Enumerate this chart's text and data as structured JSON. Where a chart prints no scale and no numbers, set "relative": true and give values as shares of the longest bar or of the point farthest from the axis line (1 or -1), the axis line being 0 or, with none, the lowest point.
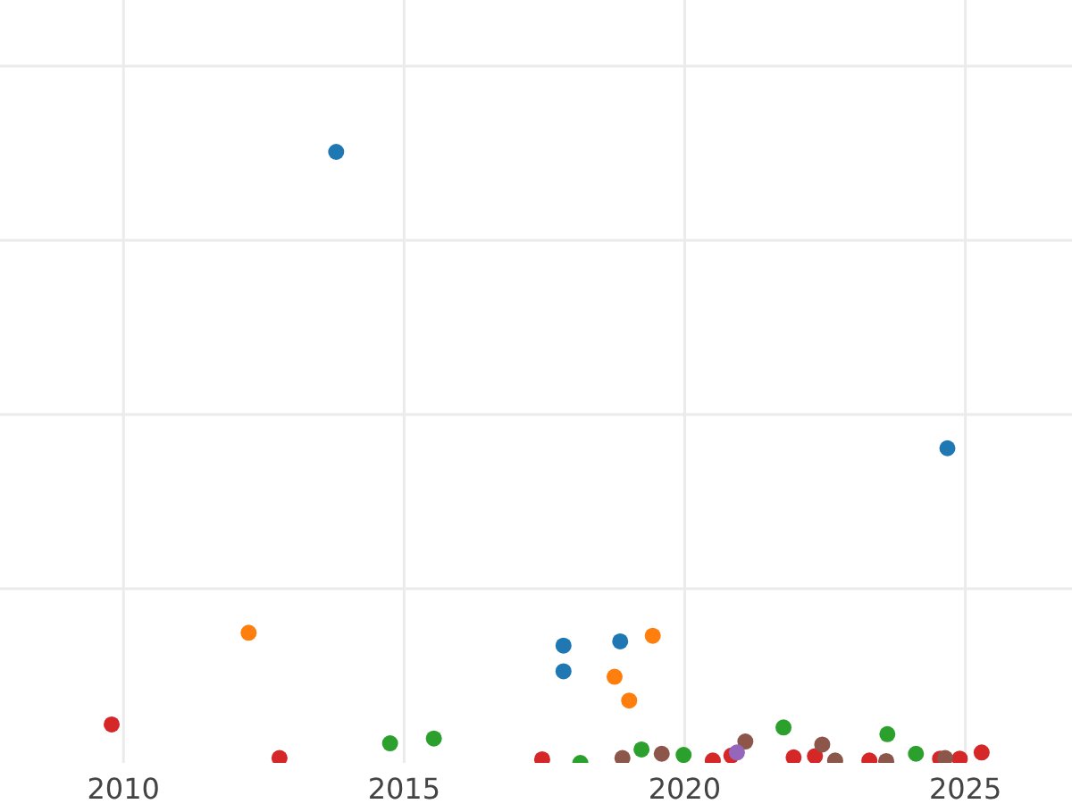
{
  "chart_data": {
    "type": "scatter",
    "relative": true,
    "grid": true,
    "marker": "circle",
    "tick_labels": "x",
    "xlim": [
      2007.8,
      2026.9
    ],
    "xticks": [
      2010,
      2015,
      2020,
      2025
    ],
    "series": [
      {
        "color": "#1f77b4",
        "x": [
          2013.79,
          2024.68,
          2017.84,
          2017.84,
          2018.85
        ],
        "values": [
          1.0,
          0.515,
          0.192,
          0.15,
          0.199
        ]
      },
      {
        "color": "#ff7f0e",
        "x": [
          2012.23,
          2019.43,
          2018.75,
          2019.01
        ],
        "values": [
          0.213,
          0.208,
          0.141,
          0.102
        ]
      },
      {
        "color": "#2ca02c",
        "x": [
          2014.75,
          2015.53,
          2018.14,
          2019.23,
          2019.98,
          2021.76,
          2023.61,
          2024.12
        ],
        "values": [
          0.032,
          0.04,
          0,
          0.022,
          0.013,
          0.058,
          0.047,
          0.015
        ]
      },
      {
        "color": "#d62728",
        "x": [
          2009.79,
          2012.78,
          2017.46,
          2020.5,
          2020.83,
          2021.94,
          2022.32,
          2023.29,
          2024.55,
          2024.9,
          2025.29
        ],
        "values": [
          0.063,
          0.008,
          0.006,
          0.004,
          0.012,
          0.009,
          0.011,
          0.004,
          0.007,
          0.007,
          0.017
        ]
      },
      {
        "color": "#8c564b",
        "x": [
          2018.89,
          2019.59,
          2021.08,
          2022.45,
          2022.68,
          2023.59,
          2024.64
        ],
        "values": [
          0.008,
          0.015,
          0.035,
          0.03,
          0.004,
          0.003,
          0.008
        ]
      },
      {
        "color": "#9467bd",
        "x": [
          2020.93
        ],
        "values": [
          0.017
        ]
      }
    ]
  }
}
